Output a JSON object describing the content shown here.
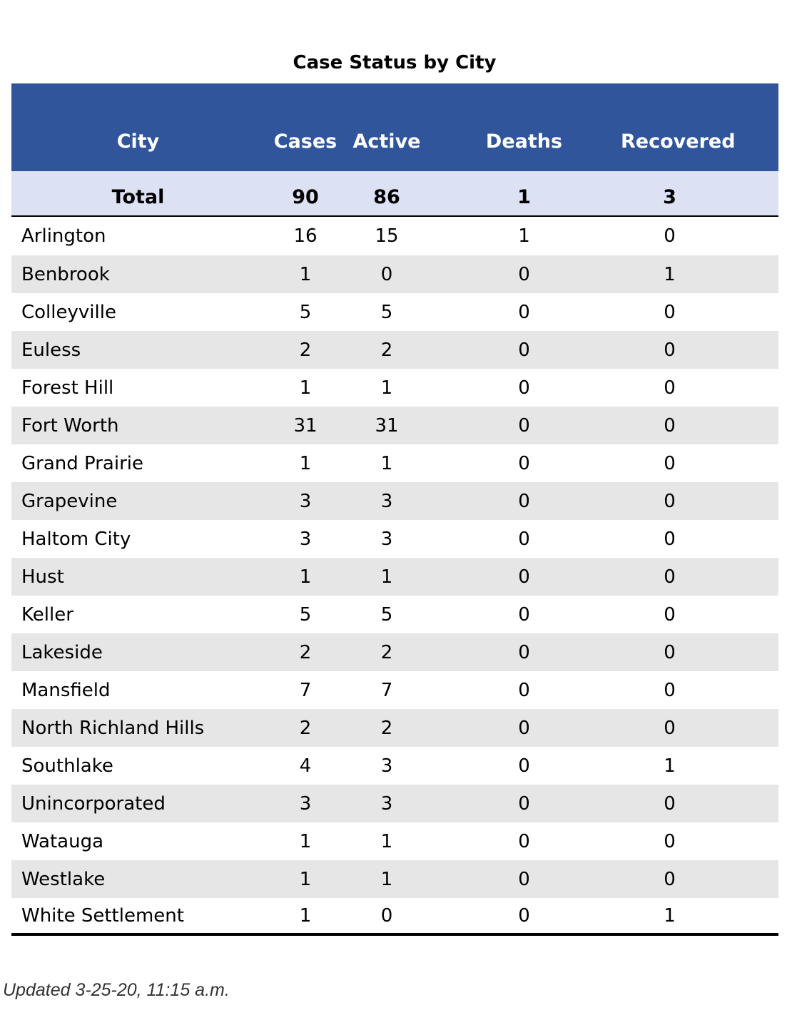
{
  "title": "Case Status by City",
  "columns": {
    "city": "City",
    "cases": "Cases",
    "active": "Active",
    "deaths": "Deaths",
    "recovered": "Recovered"
  },
  "total": {
    "label": "Total",
    "cases": "90",
    "active": "86",
    "deaths": "1",
    "recovered": "3"
  },
  "rows": [
    {
      "city": "Arlington",
      "cases": "16",
      "active": "15",
      "deaths": "1",
      "recovered": "0"
    },
    {
      "city": "Benbrook",
      "cases": "1",
      "active": "0",
      "deaths": "0",
      "recovered": "1"
    },
    {
      "city": "Colleyville",
      "cases": "5",
      "active": "5",
      "deaths": "0",
      "recovered": "0"
    },
    {
      "city": "Euless",
      "cases": "2",
      "active": "2",
      "deaths": "0",
      "recovered": "0"
    },
    {
      "city": "Forest Hill",
      "cases": "1",
      "active": "1",
      "deaths": "0",
      "recovered": "0"
    },
    {
      "city": "Fort Worth",
      "cases": "31",
      "active": "31",
      "deaths": "0",
      "recovered": "0"
    },
    {
      "city": "Grand Prairie",
      "cases": "1",
      "active": "1",
      "deaths": "0",
      "recovered": "0"
    },
    {
      "city": "Grapevine",
      "cases": "3",
      "active": "3",
      "deaths": "0",
      "recovered": "0"
    },
    {
      "city": "Haltom City",
      "cases": "3",
      "active": "3",
      "deaths": "0",
      "recovered": "0"
    },
    {
      "city": "Hust",
      "cases": "1",
      "active": "1",
      "deaths": "0",
      "recovered": "0"
    },
    {
      "city": "Keller",
      "cases": "5",
      "active": "5",
      "deaths": "0",
      "recovered": "0"
    },
    {
      "city": "Lakeside",
      "cases": "2",
      "active": "2",
      "deaths": "0",
      "recovered": "0"
    },
    {
      "city": "Mansfield",
      "cases": "7",
      "active": "7",
      "deaths": "0",
      "recovered": "0"
    },
    {
      "city": "North Richland Hills",
      "cases": "2",
      "active": "2",
      "deaths": "0",
      "recovered": "0"
    },
    {
      "city": "Southlake",
      "cases": "4",
      "active": "3",
      "deaths": "0",
      "recovered": "1"
    },
    {
      "city": "Unincorporated",
      "cases": "3",
      "active": "3",
      "deaths": "0",
      "recovered": "0"
    },
    {
      "city": "Watauga",
      "cases": "1",
      "active": "1",
      "deaths": "0",
      "recovered": "0"
    },
    {
      "city": "Westlake",
      "cases": "1",
      "active": "1",
      "deaths": "0",
      "recovered": "0"
    },
    {
      "city": "White Settlement",
      "cases": "1",
      "active": "0",
      "deaths": "0",
      "recovered": "1"
    }
  ],
  "footer": "Updated 3-25-20, 11:15 a.m.",
  "colors": {
    "header_bg": "#30559a",
    "total_bg": "#dce2f3",
    "stripe_bg": "#e6e6e6"
  }
}
